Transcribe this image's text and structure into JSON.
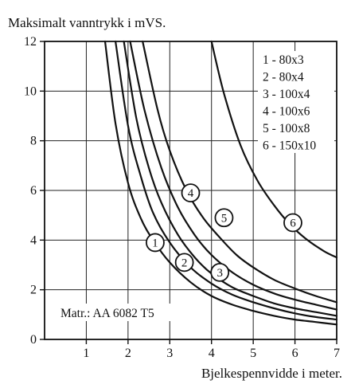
{
  "chart_data": {
    "type": "line",
    "title": "",
    "ylabel": "Maksimalt vanntrykk i mVS.",
    "xlabel": "Bjelkespennvidde i meter.",
    "xlim": [
      0,
      7
    ],
    "ylim": [
      0,
      12
    ],
    "x_ticks": [
      "1",
      "2",
      "3",
      "4",
      "5",
      "6",
      "7"
    ],
    "y_ticks": [
      "0",
      "2",
      "4",
      "6",
      "8",
      "10",
      "12"
    ],
    "grid": true,
    "legend_placement": "top-right",
    "annotation": "Matr.: AA 6082 T5",
    "series": [
      {
        "marker": "1",
        "legend": "1 -  80x3",
        "x": [
          1.45,
          1.7,
          2.0,
          2.3,
          2.6,
          3.0,
          3.5,
          4.0,
          4.5,
          5.0,
          5.5,
          6.0,
          6.5,
          7.0
        ],
        "values": [
          12.0,
          8.7,
          6.3,
          4.9,
          4.0,
          3.1,
          2.3,
          1.75,
          1.4,
          1.15,
          0.95,
          0.8,
          0.7,
          0.6
        ]
      },
      {
        "marker": "2",
        "legend": "2 -  80x4",
        "x": [
          1.7,
          2.0,
          2.3,
          2.6,
          3.0,
          3.5,
          4.0,
          4.5,
          5.0,
          5.5,
          6.0,
          6.5,
          7.0
        ],
        "values": [
          12.0,
          8.6,
          6.6,
          5.1,
          3.9,
          2.9,
          2.25,
          1.8,
          1.5,
          1.25,
          1.05,
          0.9,
          0.8
        ]
      },
      {
        "marker": "3",
        "legend": "3 - 100x4",
        "x": [
          1.9,
          2.2,
          2.5,
          2.8,
          3.2,
          3.6,
          4.0,
          4.5,
          5.0,
          5.5,
          6.0,
          6.5,
          7.0
        ],
        "values": [
          12.0,
          8.9,
          6.9,
          5.5,
          4.2,
          3.3,
          2.65,
          2.1,
          1.75,
          1.45,
          1.25,
          1.1,
          0.95
        ]
      },
      {
        "marker": "4",
        "legend": "4 - 100x6",
        "x": [
          2.05,
          2.4,
          2.8,
          3.2,
          3.6,
          4.0,
          4.5,
          5.0,
          5.5,
          6.0,
          6.5,
          7.0
        ],
        "values": [
          12.0,
          9.2,
          6.9,
          5.3,
          4.2,
          3.4,
          2.7,
          2.2,
          1.85,
          1.6,
          1.4,
          1.2
        ]
      },
      {
        "marker": "5",
        "legend": "5 - 100x8",
        "x": [
          2.35,
          2.7,
          3.0,
          3.4,
          3.8,
          4.2,
          4.6,
          5.0,
          5.5,
          6.0,
          6.5,
          7.0
        ],
        "values": [
          12.0,
          9.3,
          7.6,
          6.0,
          4.9,
          4.1,
          3.4,
          2.9,
          2.4,
          2.05,
          1.75,
          1.5
        ]
      },
      {
        "marker": "6",
        "legend": "6 - 150x10",
        "x": [
          4.0,
          4.3,
          4.7,
          5.1,
          5.5,
          5.9,
          6.3,
          6.7,
          7.0
        ],
        "values": [
          12.0,
          9.9,
          7.8,
          6.4,
          5.4,
          4.6,
          4.0,
          3.55,
          3.3
        ]
      }
    ],
    "markers": [
      {
        "label": "1",
        "x": 2.65,
        "y": 3.9
      },
      {
        "label": "2",
        "x": 3.35,
        "y": 3.1
      },
      {
        "label": "3",
        "x": 4.2,
        "y": 2.7
      },
      {
        "label": "4",
        "x": 3.5,
        "y": 5.9
      },
      {
        "label": "5",
        "x": 4.3,
        "y": 4.9
      },
      {
        "label": "6",
        "x": 5.95,
        "y": 4.7
      }
    ]
  }
}
